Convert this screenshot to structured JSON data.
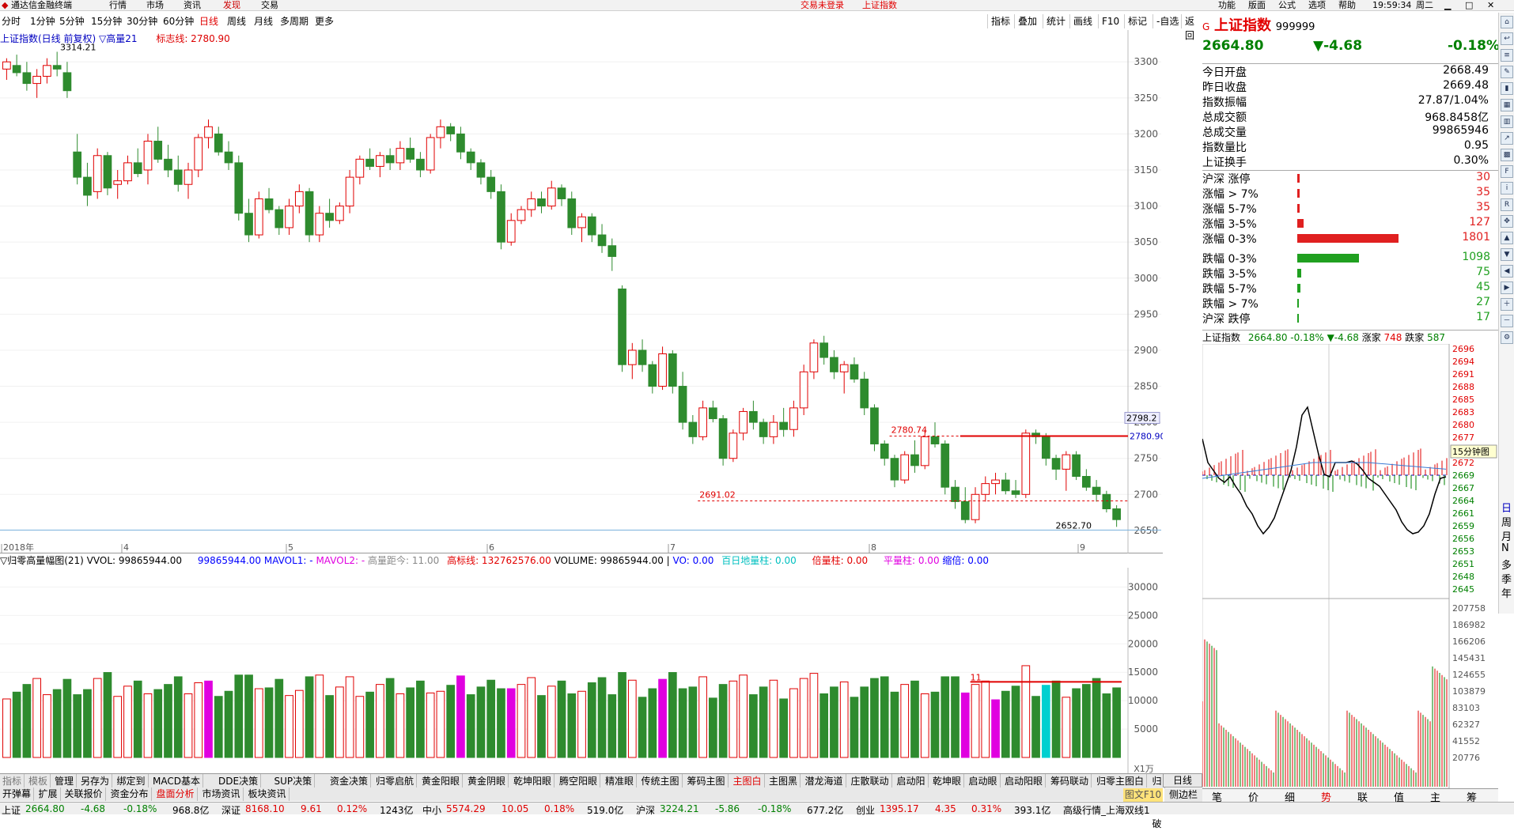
{
  "menubar": {
    "app_title": "通达信金融终端",
    "items": [
      "行情",
      "市场",
      "资讯",
      "发现",
      "交易"
    ],
    "status_center": "交易未登录",
    "status_center2": "上证指数",
    "right_items": [
      "功能",
      "版面",
      "公式",
      "选项",
      "帮助"
    ],
    "clock": "19:59:34",
    "weekday": "周二"
  },
  "periods": [
    "分时",
    "1分钟",
    "5分钟",
    "15分钟",
    "30分钟",
    "60分钟",
    "日线",
    "周线",
    "月线",
    "多周期",
    "更多"
  ],
  "active_period": "日线",
  "toolbar": [
    "指标",
    "叠加",
    "统计",
    "画线",
    "F10",
    "标记",
    "-自选",
    "返回"
  ],
  "kchart": {
    "title": "上证指数(日线 前复权) ▽高量21",
    "mark_line_label": "标志线: 2780.90",
    "high_label": "3314.21",
    "low_label": "2652.70",
    "line_2780_label": "2780.74",
    "line_2691_label": "2691.02",
    "right_line_label": "2780.90",
    "price_tag": "2798.2",
    "y_ticks": [
      "3300",
      "3250",
      "3200",
      "3150",
      "3100",
      "3050",
      "3000",
      "2950",
      "2900",
      "2850",
      "2800",
      "2750",
      "2700",
      "2650"
    ],
    "x_labels": [
      "2018年",
      "4",
      "5",
      "6",
      "7",
      "8",
      "9"
    ]
  },
  "vol": {
    "title": "▽归零高量幅图(21) VVOL: 99865944.00",
    "vvol": "99865944.00",
    "mavol1": "MAVOL1: -",
    "mavol2": "MAVOL2: -",
    "dist": "高量距今: 11.00",
    "high_line": "高标线: 132762576.00",
    "volume": "VOLUME: 99865944.00",
    "sep": "|",
    "vo": "VO: 0.00",
    "baiday": "百日地量柱: 0.00",
    "beiliang": "倍量柱: 0.00",
    "pingliang": "平量柱: 0.00",
    "suobei": "缩倍: 0.00",
    "y_ticks": [
      "30000",
      "25000",
      "20000",
      "15000",
      "10000",
      "5000"
    ],
    "unit": "X1万",
    "label_11": "11"
  },
  "tabs_row1": [
    "指标",
    "模板",
    "管理",
    "另存为",
    "绑定到",
    "MACD基本",
    "DDE决策",
    "SUP决策",
    "资金决策",
    "归零启航",
    "黄金阳眼",
    "黄金阴眼",
    "乾坤阳眼",
    "腾空阳眼",
    "精准眼",
    "传统主图",
    "筹码主图",
    "主图白",
    "主图黑",
    "潜龙海道",
    "庄散联动",
    "启动阳",
    "乾坤眼",
    "启动眼",
    "启动阳眼",
    "筹码联动",
    "归零主图白",
    "归零突破"
  ],
  "tabs_row2": [
    "开弹幕",
    "扩展",
    "关联报价",
    "资金分布",
    "盘面分析",
    "市场资讯",
    "板块资讯"
  ],
  "right_tab": "日线",
  "right_tab2": "图文F10",
  "right_tab3": "侧边栏",
  "quote": {
    "name": "上证指数",
    "code": "999999",
    "price": "2664.80",
    "change": "▼-4.68",
    "pct": "-0.18%",
    "rows": [
      {
        "k": "今日开盘",
        "v": "2668.49"
      },
      {
        "k": "昨日收盘",
        "v": "2669.48"
      },
      {
        "k": "指数振幅",
        "v": "27.87/1.04%"
      },
      {
        "k": "总成交额",
        "v": "968.8458亿"
      },
      {
        "k": "总成交量",
        "v": "99865946"
      },
      {
        "k": "指数量比",
        "v": "0.95"
      },
      {
        "k": "上证换手",
        "v": "0.30%"
      }
    ]
  },
  "distribution": [
    {
      "k": "沪深 涨停",
      "v": "30",
      "color": "#e02020",
      "frac": 0.02
    },
    {
      "k": "涨幅 > 7%",
      "v": "35",
      "color": "#e02020",
      "frac": 0.02
    },
    {
      "k": "涨幅 5-7%",
      "v": "35",
      "color": "#e02020",
      "frac": 0.02
    },
    {
      "k": "涨幅 3-5%",
      "v": "127",
      "color": "#e02020",
      "frac": 0.06
    },
    {
      "k": "涨幅 0-3%",
      "v": "1801",
      "color": "#e02020",
      "frac": 1.0
    },
    {
      "k": "跌幅 0-3%",
      "v": "1098",
      "color": "#20a020",
      "frac": 0.61
    },
    {
      "k": "跌幅 3-5%",
      "v": "75",
      "color": "#20a020",
      "frac": 0.04
    },
    {
      "k": "跌幅 5-7%",
      "v": "45",
      "color": "#20a020",
      "frac": 0.03
    },
    {
      "k": "跌幅 > 7%",
      "v": "27",
      "color": "#20a020",
      "frac": 0.015
    },
    {
      "k": "沪深 跌停",
      "v": "17",
      "color": "#20a020",
      "frac": 0.01
    }
  ],
  "mini": {
    "header": "上证指数",
    "h_price": "2664.80",
    "h_pct": "-0.18%",
    "h_chg": "▼-4.68",
    "h_up_label": "涨家",
    "h_up": "748",
    "h_down_label": "跌家",
    "h_down": "587",
    "y_ticks": [
      "2696",
      "2694",
      "2691",
      "2688",
      "2685",
      "2683",
      "2680",
      "2677",
      "2675",
      "2672",
      "2669",
      "2667",
      "2664",
      "2661",
      "2659",
      "2656",
      "2653",
      "2651",
      "2648",
      "2645"
    ],
    "vol_ticks": [
      "207758",
      "186982",
      "166206",
      "145431",
      "124655",
      "103879",
      "83103",
      "62327",
      "41552",
      "20776"
    ],
    "tag_15": "15分钟图"
  },
  "mini_tabs": [
    "笔",
    "价",
    "细",
    "势",
    "联",
    "值",
    "主",
    "筹"
  ],
  "period_vertical": [
    "日",
    "周",
    "月",
    "N",
    "多",
    "季",
    "年"
  ],
  "statusbar": [
    {
      "t": "上证",
      "c": ""
    },
    {
      "t": "2664.80",
      "c": "green"
    },
    {
      "t": "-4.68",
      "c": "green"
    },
    {
      "t": "-0.18%",
      "c": "green"
    },
    {
      "t": "968.8亿",
      "c": ""
    },
    {
      "t": "深证",
      "c": ""
    },
    {
      "t": "8168.10",
      "c": "red"
    },
    {
      "t": "9.61",
      "c": "red"
    },
    {
      "t": "0.12%",
      "c": "red"
    },
    {
      "t": "1243亿",
      "c": ""
    },
    {
      "t": "中小",
      "c": ""
    },
    {
      "t": "5574.29",
      "c": "red"
    },
    {
      "t": "10.05",
      "c": "red"
    },
    {
      "t": "0.18%",
      "c": "red"
    },
    {
      "t": "519.0亿",
      "c": ""
    },
    {
      "t": "沪深",
      "c": ""
    },
    {
      "t": "3224.21",
      "c": "green"
    },
    {
      "t": "-5.86",
      "c": "green"
    },
    {
      "t": "-0.18%",
      "c": "green"
    },
    {
      "t": "677.2亿",
      "c": ""
    },
    {
      "t": "创业",
      "c": ""
    },
    {
      "t": "1395.17",
      "c": "red"
    },
    {
      "t": "4.35",
      "c": "red"
    },
    {
      "t": "0.31%",
      "c": "red"
    },
    {
      "t": "393.1亿",
      "c": ""
    },
    {
      "t": "高级行情_上海双线1",
      "c": ""
    }
  ],
  "chart_data": {
    "type": "candlestick",
    "title": "上证指数(日线 前复权)",
    "ylim": [
      2640,
      3320
    ],
    "annotations": {
      "high": 3314.21,
      "low": 2652.7,
      "resistance": 2780.9,
      "support": 2691.02,
      "mark": 2780.74
    },
    "ohlc": [
      [
        3290,
        3305,
        3275,
        3300
      ],
      [
        3295,
        3310,
        3280,
        3285
      ],
      [
        3285,
        3300,
        3260,
        3270
      ],
      [
        3270,
        3290,
        3250,
        3280
      ],
      [
        3280,
        3305,
        3270,
        3295
      ],
      [
        3295,
        3314,
        3280,
        3290
      ],
      [
        3285,
        3300,
        3250,
        3260
      ],
      [
        3175,
        3200,
        3130,
        3140
      ],
      [
        3140,
        3160,
        3100,
        3115
      ],
      [
        3120,
        3180,
        3110,
        3170
      ],
      [
        3170,
        3175,
        3115,
        3125
      ],
      [
        3130,
        3150,
        3110,
        3135
      ],
      [
        3135,
        3170,
        3130,
        3160
      ],
      [
        3160,
        3180,
        3140,
        3145
      ],
      [
        3150,
        3200,
        3130,
        3190
      ],
      [
        3190,
        3210,
        3160,
        3165
      ],
      [
        3165,
        3185,
        3140,
        3150
      ],
      [
        3150,
        3170,
        3120,
        3130
      ],
      [
        3130,
        3160,
        3110,
        3150
      ],
      [
        3150,
        3200,
        3140,
        3195
      ],
      [
        3195,
        3220,
        3180,
        3210
      ],
      [
        3200,
        3210,
        3170,
        3175
      ],
      [
        3175,
        3190,
        3150,
        3160
      ],
      [
        3160,
        3170,
        3080,
        3090
      ],
      [
        3090,
        3110,
        3050,
        3060
      ],
      [
        3060,
        3120,
        3055,
        3110
      ],
      [
        3110,
        3125,
        3090,
        3095
      ],
      [
        3095,
        3100,
        3060,
        3070
      ],
      [
        3070,
        3110,
        3060,
        3100
      ],
      [
        3100,
        3130,
        3090,
        3120
      ],
      [
        3120,
        3125,
        3050,
        3060
      ],
      [
        3060,
        3100,
        3050,
        3090
      ],
      [
        3090,
        3110,
        3070,
        3080
      ],
      [
        3080,
        3105,
        3075,
        3100
      ],
      [
        3100,
        3150,
        3090,
        3140
      ],
      [
        3140,
        3170,
        3130,
        3165
      ],
      [
        3165,
        3180,
        3150,
        3155
      ],
      [
        3155,
        3175,
        3140,
        3170
      ],
      [
        3170,
        3180,
        3150,
        3160
      ],
      [
        3160,
        3190,
        3150,
        3180
      ],
      [
        3180,
        3195,
        3160,
        3165
      ],
      [
        3165,
        3175,
        3140,
        3150
      ],
      [
        3150,
        3200,
        3145,
        3195
      ],
      [
        3195,
        3220,
        3180,
        3210
      ],
      [
        3210,
        3215,
        3190,
        3200
      ],
      [
        3200,
        3210,
        3165,
        3175
      ],
      [
        3175,
        3180,
        3150,
        3160
      ],
      [
        3160,
        3165,
        3130,
        3140
      ],
      [
        3140,
        3150,
        3110,
        3120
      ],
      [
        3120,
        3130,
        3040,
        3050
      ],
      [
        3050,
        3090,
        3045,
        3080
      ],
      [
        3080,
        3100,
        3075,
        3095
      ],
      [
        3095,
        3120,
        3085,
        3110
      ],
      [
        3110,
        3120,
        3090,
        3100
      ],
      [
        3100,
        3135,
        3095,
        3125
      ],
      [
        3125,
        3130,
        3100,
        3110
      ],
      [
        3110,
        3120,
        3060,
        3070
      ],
      [
        3070,
        3090,
        3050,
        3085
      ],
      [
        3085,
        3090,
        3050,
        3060
      ],
      [
        3060,
        3075,
        3035,
        3045
      ],
      [
        3045,
        3055,
        3010,
        3030
      ],
      [
        2985,
        2990,
        2870,
        2880
      ],
      [
        2880,
        2910,
        2860,
        2900
      ],
      [
        2900,
        2915,
        2870,
        2880
      ],
      [
        2880,
        2885,
        2840,
        2850
      ],
      [
        2850,
        2905,
        2845,
        2895
      ],
      [
        2895,
        2900,
        2840,
        2850
      ],
      [
        2850,
        2870,
        2790,
        2800
      ],
      [
        2800,
        2810,
        2770,
        2780
      ],
      [
        2780,
        2830,
        2775,
        2820
      ],
      [
        2820,
        2830,
        2800,
        2805
      ],
      [
        2805,
        2810,
        2740,
        2750
      ],
      [
        2750,
        2790,
        2745,
        2785
      ],
      [
        2785,
        2820,
        2775,
        2815
      ],
      [
        2815,
        2830,
        2790,
        2800
      ],
      [
        2800,
        2805,
        2770,
        2780
      ],
      [
        2780,
        2810,
        2770,
        2800
      ],
      [
        2800,
        2820,
        2780,
        2790
      ],
      [
        2790,
        2830,
        2780,
        2820
      ],
      [
        2820,
        2880,
        2810,
        2870
      ],
      [
        2870,
        2915,
        2860,
        2910
      ],
      [
        2910,
        2920,
        2880,
        2890
      ],
      [
        2890,
        2900,
        2860,
        2870
      ],
      [
        2870,
        2885,
        2840,
        2880
      ],
      [
        2880,
        2890,
        2855,
        2860
      ],
      [
        2860,
        2870,
        2810,
        2820
      ],
      [
        2820,
        2825,
        2760,
        2770
      ],
      [
        2770,
        2775,
        2740,
        2750
      ],
      [
        2750,
        2755,
        2710,
        2720
      ],
      [
        2720,
        2760,
        2715,
        2755
      ],
      [
        2755,
        2775,
        2730,
        2740
      ],
      [
        2740,
        2790,
        2735,
        2780
      ],
      [
        2780,
        2800,
        2765,
        2770
      ],
      [
        2770,
        2775,
        2700,
        2710
      ],
      [
        2710,
        2720,
        2680,
        2690
      ],
      [
        2690,
        2710,
        2660,
        2665
      ],
      [
        2665,
        2710,
        2660,
        2700
      ],
      [
        2700,
        2725,
        2690,
        2715
      ],
      [
        2715,
        2730,
        2700,
        2720
      ],
      [
        2720,
        2730,
        2700,
        2705
      ],
      [
        2705,
        2720,
        2695,
        2700
      ],
      [
        2700,
        2790,
        2695,
        2785
      ],
      [
        2785,
        2790,
        2770,
        2780
      ],
      [
        2780,
        2785,
        2740,
        2750
      ],
      [
        2750,
        2755,
        2720,
        2735
      ],
      [
        2735,
        2760,
        2705,
        2755
      ],
      [
        2755,
        2760,
        2720,
        2725
      ],
      [
        2725,
        2735,
        2705,
        2710
      ],
      [
        2710,
        2720,
        2690,
        2700
      ],
      [
        2700,
        2705,
        2675,
        2680
      ],
      [
        2680,
        2685,
        2655,
        2665
      ]
    ],
    "volume_note": "归零高量幅图 bars (X1万)"
  }
}
